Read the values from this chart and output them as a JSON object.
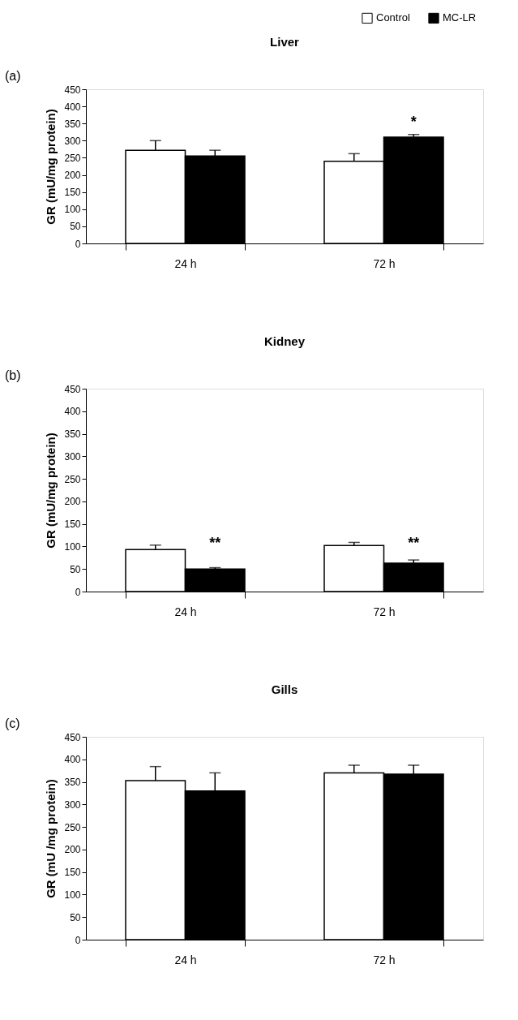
{
  "chart_data": [
    {
      "type": "bar",
      "title": "Liver",
      "categories": [
        "24 h",
        "72 h"
      ],
      "ylabel": "GR (mU/mg protein)",
      "ylim": [
        0,
        450
      ],
      "yticks": [
        0,
        50,
        100,
        150,
        200,
        250,
        300,
        350,
        400,
        450
      ],
      "legend": "top right",
      "annotations": [
        "(a)",
        {
          "text": "*",
          "x": "72 h",
          "y": 318
        }
      ],
      "series": [
        {
          "name": "Control",
          "color": "#ffffff",
          "values": [
            272,
            240
          ],
          "errors": [
            [
              272,
              300
            ],
            [
              240,
              262
            ]
          ]
        },
        {
          "name": "MC-LR",
          "color": "#000000",
          "values": [
            255,
            310
          ],
          "errors": [
            [
              255,
              272
            ],
            [
              310,
              318
            ]
          ]
        }
      ]
    },
    {
      "type": "bar",
      "title": "Kidney",
      "categories": [
        "24 h",
        "72 h"
      ],
      "ylabel": "GR (mU/mg protein)",
      "ylim": [
        0,
        450
      ],
      "yticks": [
        0,
        50,
        100,
        150,
        200,
        250,
        300,
        350,
        400,
        450
      ],
      "annotations": [
        "(b)",
        {
          "text": "**",
          "x": "24 h",
          "y": 80
        },
        {
          "text": "**",
          "x": "72 h",
          "y": 80
        }
      ],
      "series": [
        {
          "color": "#ffffff",
          "values": [
            93,
            102
          ],
          "errors": [
            [
              93,
              103
            ],
            [
              102,
              109
            ]
          ]
        },
        {
          "color": "#000000",
          "values": [
            50,
            63
          ],
          "errors": [
            [
              50,
              53
            ],
            [
              63,
              70
            ]
          ]
        }
      ]
    },
    {
      "type": "bar",
      "title": "Gills",
      "categories": [
        "24 h",
        "72 h"
      ],
      "ylabel": "GR (mU /mg protein)",
      "ylim": [
        0,
        450
      ],
      "yticks": [
        0,
        50,
        100,
        150,
        200,
        250,
        300,
        350,
        400,
        450
      ],
      "annotations": [
        "(c)"
      ],
      "series": [
        {
          "color": "#ffffff",
          "values": [
            353,
            370
          ],
          "errors": [
            [
              353,
              384
            ],
            [
              370,
              387
            ]
          ]
        },
        {
          "color": "#000000",
          "values": [
            330,
            367
          ],
          "errors": [
            [
              330,
              370
            ],
            [
              367,
              387
            ]
          ]
        }
      ]
    }
  ]
}
